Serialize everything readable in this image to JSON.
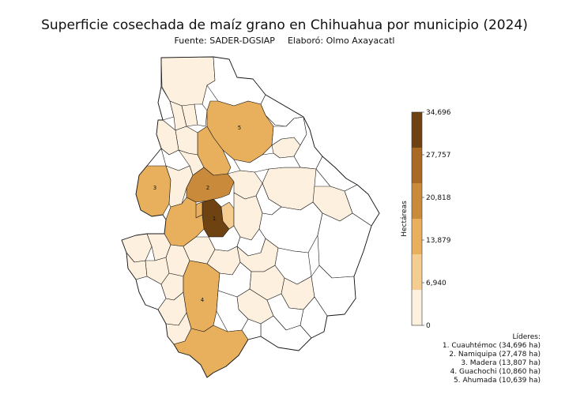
{
  "title": "Superficie cosechada de maíz grano en Chihuahua por municipio (2024)",
  "source": "Fuente: SADER-DGSIAP",
  "author": "Elaboró: Olmo Axayacatl",
  "colorbar": {
    "label": "Hectáreas",
    "min": 0,
    "max": 34696,
    "ticks": [
      "34,696",
      "27,757",
      "20,818",
      "13,879",
      "6,940",
      "0"
    ],
    "colors": [
      "#fdf0de",
      "#f5cd91",
      "#e8b05d",
      "#c98a3b",
      "#a86a24",
      "#6e4311"
    ]
  },
  "leaders": {
    "heading": "Líderes:",
    "items": [
      {
        "rank": "1",
        "text": "1. Cuauhtémoc (34,696 ha)",
        "municipality": "Cuauhtémoc",
        "value": 34696
      },
      {
        "rank": "2",
        "text": "2. Namiquipa (27,478 ha)",
        "municipality": "Namiquipa",
        "value": 27478
      },
      {
        "rank": "3",
        "text": "3. Madera (13,807 ha)",
        "municipality": "Madera",
        "value": 13807
      },
      {
        "rank": "4",
        "text": "4. Guachochi (10,860 ha)",
        "municipality": "Guachochi",
        "value": 10860
      },
      {
        "rank": "5",
        "text": "5. Ahumada (10,639 ha)",
        "municipality": "Ahumada",
        "value": 10639
      }
    ]
  },
  "map_labels": [
    "1",
    "2",
    "3",
    "4",
    "5"
  ]
}
